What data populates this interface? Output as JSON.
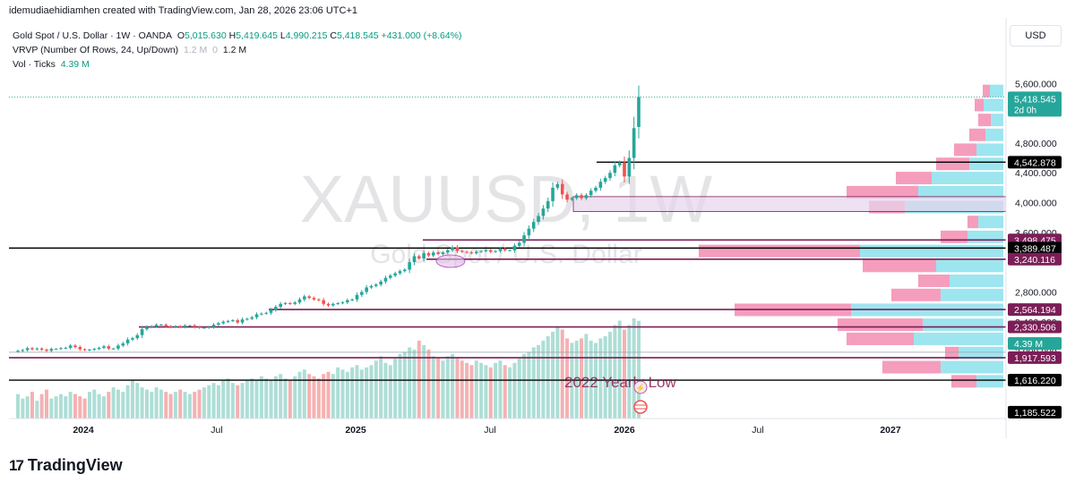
{
  "caption": "idemudiaehidiamhen created with TradingView.com, Jan 28, 2026 23:06 UTC+1",
  "legend": {
    "symbol": "Gold Spot / U.S. Dollar · 1W · OANDA",
    "o_label": "O",
    "o": "5,015.630",
    "h_label": "H",
    "h": "5,419.645",
    "l_label": "L",
    "l": "4,990.215",
    "c_label": "C",
    "c": "5,418.545",
    "change": "+431.000 (+8.64%)",
    "vrvp": "VRVP (Number Of Rows, 24, Up/Down)",
    "vrvp_v1": "1.2 M",
    "vrvp_v2": "0",
    "vrvp_v3": "1.2 M",
    "vol": "Vol · Ticks",
    "vol_value": "4.39 M"
  },
  "currency": "USD",
  "footer": {
    "brand": "TradingView",
    "logo": "17"
  },
  "colors": {
    "up": "#26a69a",
    "down": "#ef5350",
    "vol_up": "#9fd8cf",
    "vol_down": "#f3a3a5",
    "vp_up": "#4dd0e1",
    "vp_down": "#ef5c90",
    "level": "#7b1e57",
    "zone": "#e7d4ec"
  },
  "chart_data": {
    "type": "candlestick",
    "title": "XAUUSD, 1W",
    "subtitle": "Gold Spot / U.S. Dollar",
    "annotation": "2022 Yearly Low",
    "x_ticks": [
      "2024",
      "Jul",
      "2025",
      "Jul",
      "2026",
      "Jul",
      "2027"
    ],
    "y_ticks": [
      "5,600.000",
      "4,800.000",
      "4,400.000",
      "4,000.000",
      "3,600.000",
      "2,800.000",
      "2,400.000",
      "2,000.000"
    ],
    "y_range": [
      1100,
      5700
    ],
    "last_price": {
      "value": "5,418.545",
      "countdown": "2d 0h"
    },
    "levels": [
      {
        "value": 4542.878,
        "label": "4,542.878",
        "color": "#000000"
      },
      {
        "value": 3498.475,
        "label": "3,498.475",
        "color": "#7b1e57"
      },
      {
        "value": 3389.487,
        "label": "3,389.487",
        "color": "#000000"
      },
      {
        "value": 3240.116,
        "label": "3,240.116",
        "color": "#7b1e57"
      },
      {
        "value": 2564.194,
        "label": "2,564.194",
        "color": "#7b1e57"
      },
      {
        "value": 2330.506,
        "label": "2,330.506",
        "color": "#7b1e57"
      },
      {
        "value": 1917.593,
        "label": "1,917.593",
        "color": "#7b1e57"
      },
      {
        "value": 1616.22,
        "label": "1,616.220",
        "color": "#000000"
      },
      {
        "value": 1185.522,
        "label": "1,185.522",
        "color": "#000000"
      }
    ],
    "volume_tag": "4.39 M",
    "zone": {
      "from": 3880,
      "to": 4080
    },
    "closes": [
      2010,
      2020,
      2045,
      2030,
      2040,
      2025,
      2010,
      2035,
      2035,
      2045,
      2050,
      2080,
      2060,
      2030,
      2020,
      2025,
      2035,
      2050,
      2070,
      2040,
      2040,
      2080,
      2110,
      2160,
      2180,
      2220,
      2300,
      2330,
      2340,
      2360,
      2360,
      2340,
      2330,
      2340,
      2330,
      2350,
      2350,
      2330,
      2320,
      2320,
      2330,
      2360,
      2380,
      2400,
      2410,
      2420,
      2390,
      2430,
      2440,
      2460,
      2500,
      2510,
      2520,
      2560,
      2600,
      2640,
      2650,
      2640,
      2660,
      2700,
      2740,
      2720,
      2700,
      2690,
      2640,
      2620,
      2640,
      2650,
      2660,
      2690,
      2700,
      2760,
      2800,
      2860,
      2880,
      2900,
      2940,
      2990,
      3020,
      3050,
      3080,
      3100,
      3200,
      3280,
      3250,
      3320,
      3290,
      3330,
      3310,
      3330,
      3360,
      3400,
      3350,
      3340,
      3330,
      3320,
      3340,
      3350,
      3360,
      3340,
      3350,
      3380,
      3360,
      3360,
      3420,
      3460,
      3560,
      3650,
      3740,
      3820,
      3920,
      4020,
      4200,
      4250,
      4110,
      4040,
      4060,
      4100,
      4060,
      4100,
      4160,
      4200,
      4280,
      4330,
      4400,
      4500,
      4540,
      4350,
      4600,
      5000,
      5418.545
    ],
    "volume": [
      1.1,
      0.9,
      1.0,
      1.2,
      0.8,
      1.1,
      1.3,
      0.9,
      1.0,
      1.1,
      1.0,
      1.2,
      1.1,
      1.0,
      0.9,
      1.2,
      1.3,
      1.1,
      1.0,
      1.2,
      1.4,
      1.3,
      1.2,
      1.5,
      1.7,
      1.6,
      1.4,
      1.3,
      1.2,
      1.4,
      1.3,
      1.2,
      1.1,
      1.2,
      1.3,
      1.2,
      1.1,
      1.2,
      1.3,
      1.4,
      1.5,
      1.6,
      1.5,
      1.7,
      1.8,
      1.6,
      1.5,
      1.6,
      1.7,
      1.8,
      1.7,
      1.9,
      1.8,
      1.7,
      1.9,
      2.0,
      1.8,
      1.7,
      1.9,
      2.1,
      2.2,
      2.0,
      1.9,
      1.8,
      2.0,
      2.1,
      2.0,
      2.3,
      2.2,
      2.1,
      2.3,
      2.4,
      2.2,
      2.3,
      2.4,
      2.6,
      2.8,
      2.5,
      2.4,
      2.7,
      2.9,
      3.0,
      3.2,
      3.1,
      3.5,
      3.3,
      3.1,
      2.8,
      2.7,
      2.6,
      2.8,
      2.9,
      2.7,
      2.6,
      2.5,
      2.4,
      2.6,
      2.5,
      2.4,
      2.3,
      2.5,
      2.6,
      2.4,
      2.3,
      2.5,
      2.7,
      2.9,
      3.0,
      3.2,
      3.3,
      3.5,
      3.7,
      3.9,
      4.1,
      4.0,
      3.6,
      3.4,
      3.5,
      3.6,
      3.8,
      3.5,
      3.4,
      3.6,
      3.7,
      3.9,
      4.2,
      4.4,
      4.0,
      4.2,
      4.5,
      4.39
    ],
    "volume_profile": [
      {
        "price": 5500,
        "up": 15,
        "down": 8
      },
      {
        "price": 5310,
        "up": 22,
        "down": 10
      },
      {
        "price": 5110,
        "up": 14,
        "down": 14
      },
      {
        "price": 4910,
        "up": 20,
        "down": 18
      },
      {
        "price": 4710,
        "up": 30,
        "down": 25
      },
      {
        "price": 4520,
        "up": 38,
        "down": 37
      },
      {
        "price": 4330,
        "up": 80,
        "down": 40
      },
      {
        "price": 4140,
        "up": 95,
        "down": 80
      },
      {
        "price": 3940,
        "up": 110,
        "down": 40
      },
      {
        "price": 3740,
        "up": 28,
        "down": 12
      },
      {
        "price": 3540,
        "up": 40,
        "down": 30
      },
      {
        "price": 3350,
        "up": 160,
        "down": 180
      },
      {
        "price": 3150,
        "up": 75,
        "down": 82
      },
      {
        "price": 2950,
        "up": 60,
        "down": 35
      },
      {
        "price": 2760,
        "up": 70,
        "down": 55
      },
      {
        "price": 2560,
        "up": 170,
        "down": 130
      },
      {
        "price": 2360,
        "up": 90,
        "down": 95
      },
      {
        "price": 2170,
        "up": 100,
        "down": 75
      },
      {
        "price": 1980,
        "up": 50,
        "down": 15
      },
      {
        "price": 1790,
        "up": 70,
        "down": 65
      },
      {
        "price": 1600,
        "up": 30,
        "down": 28
      }
    ]
  }
}
